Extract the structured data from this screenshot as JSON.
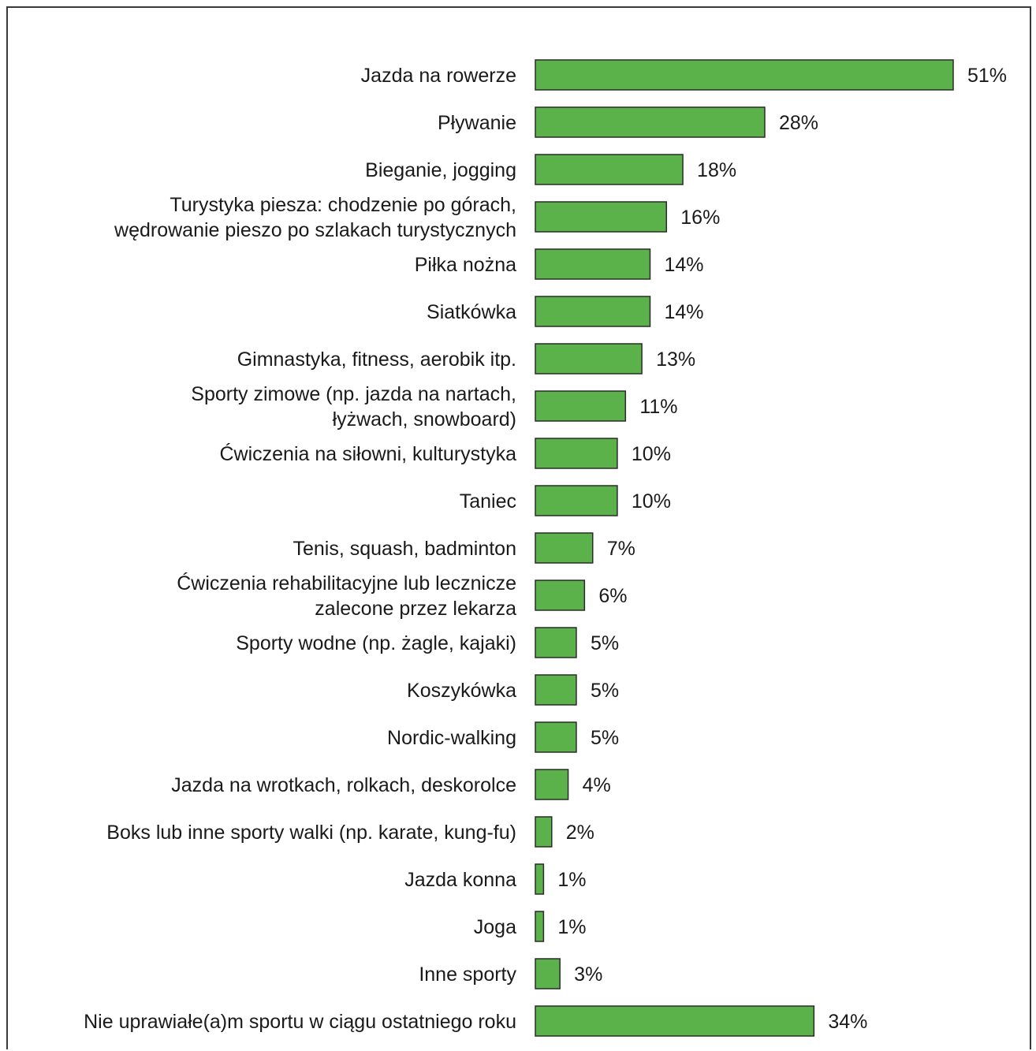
{
  "chart_data": {
    "type": "bar",
    "orientation": "horizontal",
    "bar_color": "#5cb24a",
    "categories": [
      [
        "Jazda na rowerze"
      ],
      [
        "Pływanie"
      ],
      [
        "Bieganie, jogging"
      ],
      [
        "Turystyka piesza: chodzenie po górach,",
        "wędrowanie pieszo po szlakach turystycznych"
      ],
      [
        "Piłka nożna"
      ],
      [
        "Siatkówka"
      ],
      [
        "Gimnastyka, fitness, aerobik itp."
      ],
      [
        "Sporty zimowe (np. jazda na nartach,",
        "łyżwach, snowboard)"
      ],
      [
        "Ćwiczenia na siłowni, kulturystyka"
      ],
      [
        "Taniec"
      ],
      [
        "Tenis, squash, badminton"
      ],
      [
        "Ćwiczenia rehabilitacyjne lub lecznicze",
        "zalecone przez lekarza"
      ],
      [
        "Sporty wodne (np. żagle, kajaki)"
      ],
      [
        "Koszykówka"
      ],
      [
        "Nordic-walking"
      ],
      [
        "Jazda na wrotkach, rolkach, deskorolce"
      ],
      [
        "Boks lub inne sporty walki (np. karate, kung-fu)"
      ],
      [
        "Jazda konna"
      ],
      [
        "Joga"
      ],
      [
        "Inne sporty"
      ],
      [
        "Nie uprawiałe(a)m sportu w ciągu ostatniego roku"
      ]
    ],
    "values": [
      51,
      28,
      18,
      16,
      14,
      14,
      13,
      11,
      10,
      10,
      7,
      6,
      5,
      5,
      5,
      4,
      2,
      1,
      1,
      3,
      34
    ],
    "value_labels": [
      "51%",
      "28%",
      "18%",
      "16%",
      "14%",
      "14%",
      "13%",
      "11%",
      "10%",
      "10%",
      "7%",
      "6%",
      "5%",
      "5%",
      "5%",
      "4%",
      "2%",
      "1%",
      "1%",
      "3%",
      "34%"
    ],
    "title": "",
    "xlabel": "",
    "ylabel": "",
    "xlim": [
      0,
      51
    ],
    "grid": false,
    "legend": "none"
  }
}
